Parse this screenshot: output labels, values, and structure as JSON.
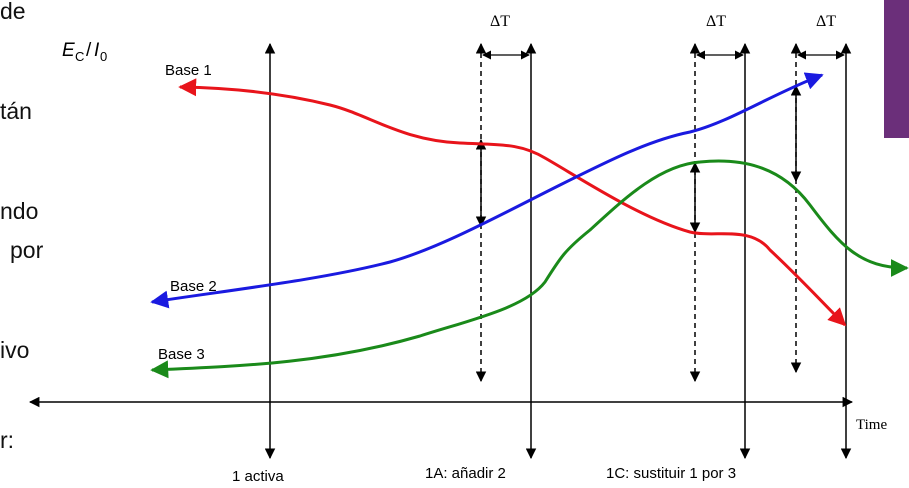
{
  "left_text_fragments": [
    "de",
    "tán",
    "ndo",
    "por",
    "ivo",
    "r:"
  ],
  "y_axis_label": {
    "main": "E",
    "sub1": "C",
    "sep": "/",
    "main2": "I",
    "sub2": "0"
  },
  "x_axis_label": "Time",
  "curve_labels": [
    "Base 1",
    "Base 2",
    "Base 3"
  ],
  "delta_labels": [
    "ΔT",
    "ΔT",
    "ΔT"
  ],
  "event_labels": [
    "1 activa",
    "1A: añadir 2",
    "1C: sustituir 1 por 3"
  ],
  "colors": {
    "base1": "#e8141b",
    "base2": "#1a1ae0",
    "base3": "#1a8a1a",
    "side_block": "#6b2f7a"
  }
}
